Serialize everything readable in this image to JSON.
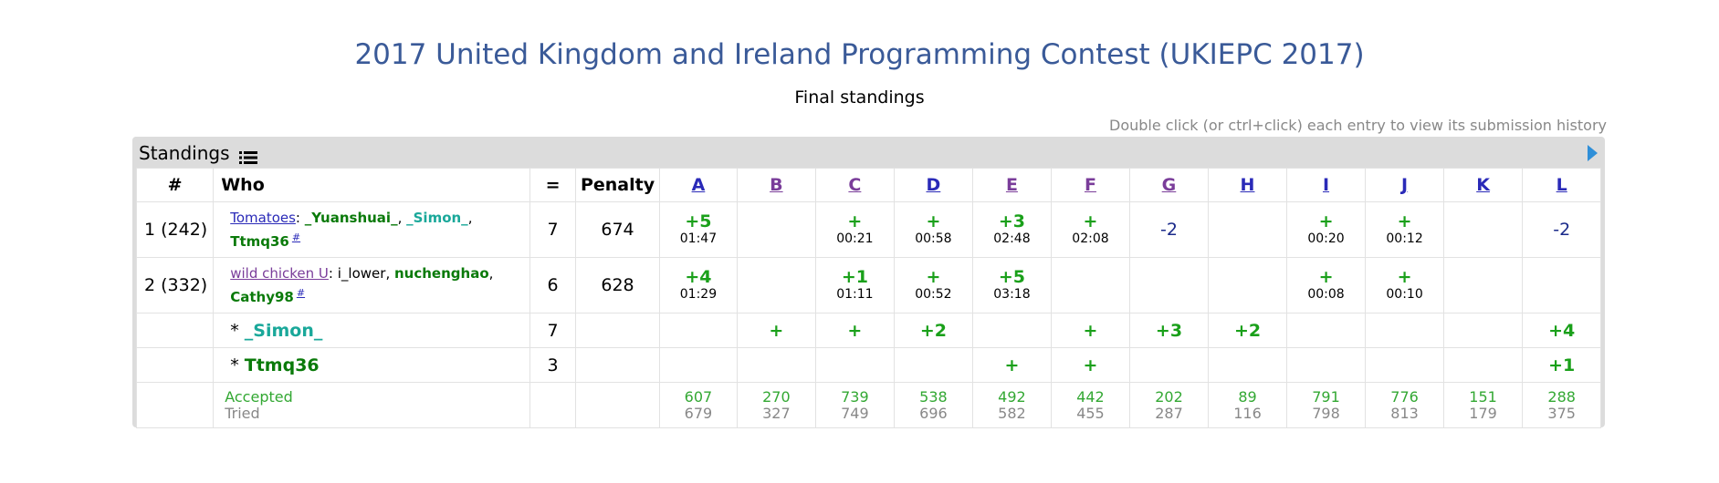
{
  "header": {
    "title": "2017 United Kingdom and Ireland Programming Contest (UKIEPC 2017)",
    "subtitle": "Final standings",
    "hint": "Double click (or ctrl+click) each entry to view its submission history"
  },
  "panel": {
    "title": "Standings",
    "icons": {
      "list": "list-icon",
      "toggle": "arrow-right-icon"
    }
  },
  "table": {
    "headers": {
      "rank": "#",
      "who": "Who",
      "solved": "=",
      "penalty": "Penalty"
    },
    "problems": [
      "A",
      "B",
      "C",
      "D",
      "E",
      "F",
      "G",
      "H",
      "I",
      "J",
      "K",
      "L"
    ],
    "rows": [
      {
        "rank": "1 (242)",
        "team": "Tomatoes",
        "sep": ":",
        "members": [
          "_Yuanshuai_",
          "_Simon_",
          "Ttmq36"
        ],
        "hash": "#",
        "solved": "7",
        "penalty": "674",
        "cells": [
          {
            "r": "+5",
            "t": "01:47"
          },
          {
            "r": "",
            "t": ""
          },
          {
            "r": "+",
            "t": "00:21"
          },
          {
            "r": "+",
            "t": "00:58"
          },
          {
            "r": "+3",
            "t": "02:48"
          },
          {
            "r": "+",
            "t": "02:08"
          },
          {
            "r": "-2",
            "t": ""
          },
          {
            "r": "",
            "t": ""
          },
          {
            "r": "+",
            "t": "00:20"
          },
          {
            "r": "+",
            "t": "00:12"
          },
          {
            "r": "",
            "t": ""
          },
          {
            "r": "-2",
            "t": ""
          }
        ]
      },
      {
        "rank": "2 (332)",
        "team": "wild chicken U",
        "sep": ":",
        "members": [
          "i_lower",
          "nuchenghao",
          "Cathy98"
        ],
        "hash": "#",
        "solved": "6",
        "penalty": "628",
        "cells": [
          {
            "r": "+4",
            "t": "01:29"
          },
          {
            "r": "",
            "t": ""
          },
          {
            "r": "+1",
            "t": "01:11"
          },
          {
            "r": "+",
            "t": "00:52"
          },
          {
            "r": "+5",
            "t": "03:18"
          },
          {
            "r": "",
            "t": ""
          },
          {
            "r": "",
            "t": ""
          },
          {
            "r": "",
            "t": ""
          },
          {
            "r": "+",
            "t": "00:08"
          },
          {
            "r": "+",
            "t": "00:10"
          },
          {
            "r": "",
            "t": ""
          },
          {
            "r": "",
            "t": ""
          }
        ]
      }
    ],
    "individuals": [
      {
        "star": "*",
        "name": "_Simon_",
        "solved": "7",
        "cells": [
          "",
          "+",
          "+",
          "+2",
          "",
          "+",
          "+3",
          "+2",
          "",
          "",
          "",
          "+4"
        ]
      },
      {
        "star": "*",
        "name": "Ttmq36",
        "solved": "3",
        "cells": [
          "",
          "",
          "",
          "",
          "+",
          "+",
          "",
          "",
          "",
          "",
          "",
          "+1"
        ]
      }
    ],
    "stats": {
      "accepted_label": "Accepted",
      "tried_label": "Tried",
      "accepted": [
        "607",
        "270",
        "739",
        "538",
        "492",
        "442",
        "202",
        "89",
        "791",
        "776",
        "151",
        "288"
      ],
      "tried": [
        "679",
        "327",
        "749",
        "696",
        "582",
        "455",
        "287",
        "116",
        "798",
        "813",
        "179",
        "375"
      ]
    }
  },
  "colors": {
    "title": "#3a5a98",
    "accepted_green": "#1aa01a",
    "failed_blue": "#1a2a8a",
    "link_blue": "#2a2ab8",
    "visited_purple": "#7a3d9a",
    "member_dark_green": "#0a7a0a",
    "member_teal": "#1aa89a",
    "panel_gray": "#dcdcdc"
  }
}
